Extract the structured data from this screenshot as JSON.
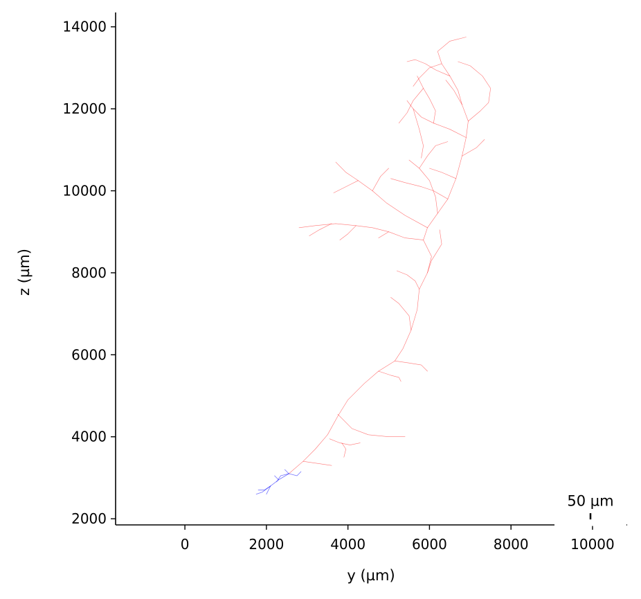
{
  "chart_data": {
    "type": "line",
    "xlabel": "y (µm)",
    "ylabel": "z (µm)",
    "xlim": [
      -1700,
      10850
    ],
    "ylim": [
      1850,
      14350
    ],
    "xticks": [
      0,
      2000,
      4000,
      6000,
      8000,
      10000
    ],
    "yticks": [
      2000,
      4000,
      6000,
      8000,
      10000,
      12000,
      14000
    ],
    "xtick_labels": [
      "0",
      "2000",
      "4000",
      "6000",
      "8000",
      "10000"
    ],
    "ytick_labels": [
      "2000",
      "4000",
      "6000",
      "8000",
      "10000",
      "12000",
      "14000"
    ],
    "grid": false,
    "scalebar": {
      "label": "50 µm",
      "x": 9950,
      "y": 2060,
      "length": 50
    },
    "colors": {
      "axon": "#ff0000",
      "dendrite": "#0000ff",
      "axes": "#000000"
    },
    "series": [
      {
        "color": "#ff0000",
        "paths": [
          [
            [
              2550,
              3100
            ],
            [
              2900,
              3400
            ],
            [
              3200,
              3700
            ],
            [
              3500,
              4050
            ],
            [
              3750,
              4500
            ],
            [
              4000,
              4900
            ],
            [
              4400,
              5300
            ],
            [
              4750,
              5600
            ],
            [
              5150,
              5850
            ],
            [
              5350,
              6150
            ],
            [
              5550,
              6600
            ],
            [
              5700,
              7100
            ],
            [
              5750,
              7600
            ],
            [
              5950,
              8000
            ],
            [
              6050,
              8400
            ],
            [
              5850,
              8800
            ],
            [
              5950,
              9100
            ],
            [
              6200,
              9450
            ],
            [
              6450,
              9800
            ],
            [
              6650,
              10300
            ],
            [
              6800,
              10850
            ],
            [
              6900,
              11300
            ],
            [
              6950,
              11700
            ],
            [
              6800,
              12100
            ],
            [
              6700,
              12450
            ],
            [
              6500,
              12800
            ],
            [
              6300,
              13100
            ],
            [
              6200,
              13400
            ],
            [
              6500,
              13650
            ],
            [
              6900,
              13750
            ]
          ],
          [
            [
              3550,
              3950
            ],
            [
              3800,
              3850
            ],
            [
              4050,
              3800
            ],
            [
              4300,
              3850
            ]
          ],
          [
            [
              3850,
              3850
            ],
            [
              3950,
              3700
            ],
            [
              3900,
              3500
            ]
          ],
          [
            [
              3750,
              4550
            ],
            [
              4100,
              4200
            ],
            [
              4500,
              4050
            ],
            [
              5000,
              4000
            ],
            [
              5400,
              4000
            ]
          ],
          [
            [
              4750,
              5600
            ],
            [
              5050,
              5500
            ],
            [
              5250,
              5450
            ],
            [
              5300,
              5350
            ]
          ],
          [
            [
              5150,
              5850
            ],
            [
              5500,
              5800
            ],
            [
              5800,
              5750
            ],
            [
              5950,
              5600
            ]
          ],
          [
            [
              5550,
              6600
            ],
            [
              5500,
              6950
            ],
            [
              5250,
              7250
            ],
            [
              5050,
              7400
            ]
          ],
          [
            [
              5750,
              7600
            ],
            [
              5650,
              7800
            ],
            [
              5450,
              7950
            ],
            [
              5200,
              8050
            ]
          ],
          [
            [
              5950,
              8000
            ],
            [
              6050,
              8300
            ],
            [
              6300,
              8700
            ],
            [
              6250,
              9050
            ]
          ],
          [
            [
              5850,
              8800
            ],
            [
              5400,
              8850
            ],
            [
              5000,
              9000
            ],
            [
              4600,
              9100
            ],
            [
              4200,
              9150
            ],
            [
              3700,
              9200
            ],
            [
              3200,
              9150
            ],
            [
              2800,
              9100
            ]
          ],
          [
            [
              4200,
              9150
            ],
            [
              4000,
              8950
            ],
            [
              3800,
              8800
            ]
          ],
          [
            [
              3600,
              9200
            ],
            [
              3300,
              9050
            ],
            [
              3050,
              8900
            ]
          ],
          [
            [
              5000,
              9000
            ],
            [
              4750,
              8850
            ]
          ],
          [
            [
              5950,
              9100
            ],
            [
              5400,
              9400
            ],
            [
              4950,
              9700
            ],
            [
              4600,
              10000
            ],
            [
              4250,
              10250
            ],
            [
              3950,
              10450
            ],
            [
              3700,
              10700
            ]
          ],
          [
            [
              4600,
              10000
            ],
            [
              4800,
              10350
            ],
            [
              5000,
              10550
            ]
          ],
          [
            [
              4250,
              10250
            ],
            [
              3950,
              10100
            ],
            [
              3650,
              9950
            ]
          ],
          [
            [
              6450,
              9800
            ],
            [
              6100,
              10000
            ],
            [
              5800,
              10100
            ],
            [
              5400,
              10200
            ],
            [
              5050,
              10300
            ]
          ],
          [
            [
              6200,
              9450
            ],
            [
              6150,
              9850
            ],
            [
              6000,
              10250
            ],
            [
              5750,
              10550
            ],
            [
              5500,
              10750
            ]
          ],
          [
            [
              5750,
              10550
            ],
            [
              5950,
              10850
            ],
            [
              6150,
              11100
            ],
            [
              6450,
              11200
            ]
          ],
          [
            [
              6650,
              10300
            ],
            [
              6300,
              10450
            ],
            [
              6000,
              10550
            ]
          ],
          [
            [
              6800,
              10850
            ],
            [
              7150,
              11050
            ],
            [
              7350,
              11250
            ]
          ],
          [
            [
              6900,
              11300
            ],
            [
              6500,
              11500
            ],
            [
              6100,
              11650
            ],
            [
              5800,
              11800
            ],
            [
              5600,
              12000
            ],
            [
              5450,
              12200
            ]
          ],
          [
            [
              6100,
              11650
            ],
            [
              6150,
              11950
            ],
            [
              6000,
              12250
            ],
            [
              5850,
              12500
            ],
            [
              5700,
              12800
            ]
          ],
          [
            [
              6950,
              11700
            ],
            [
              7250,
              11950
            ],
            [
              7450,
              12150
            ],
            [
              7500,
              12500
            ],
            [
              7300,
              12800
            ],
            [
              7000,
              13050
            ],
            [
              6700,
              13150
            ]
          ],
          [
            [
              6500,
              12800
            ],
            [
              6150,
              12950
            ],
            [
              5900,
              13100
            ],
            [
              5650,
              13200
            ],
            [
              5450,
              13150
            ]
          ],
          [
            [
              6300,
              13100
            ],
            [
              6000,
              13000
            ],
            [
              5750,
              12750
            ],
            [
              5600,
              12550
            ]
          ],
          [
            [
              5850,
              12500
            ],
            [
              5600,
              12200
            ],
            [
              5450,
              11900
            ],
            [
              5250,
              11650
            ]
          ],
          [
            [
              6800,
              12100
            ],
            [
              6600,
              12450
            ],
            [
              6400,
              12700
            ]
          ],
          [
            [
              5600,
              12000
            ],
            [
              5750,
              11500
            ],
            [
              5850,
              11100
            ],
            [
              5800,
              10800
            ]
          ],
          [
            [
              2900,
              3400
            ],
            [
              3250,
              3350
            ],
            [
              3600,
              3300
            ]
          ]
        ]
      },
      {
        "color": "#0000ff",
        "paths": [
          [
            [
              2550,
              3100
            ],
            [
              2300,
              2950
            ],
            [
              2100,
              2800
            ],
            [
              1900,
              2650
            ],
            [
              1750,
              2600
            ]
          ],
          [
            [
              2550,
              3100
            ],
            [
              2750,
              3050
            ],
            [
              2850,
              3150
            ]
          ],
          [
            [
              2550,
              3100
            ],
            [
              2350,
              3050
            ],
            [
              2250,
              2900
            ]
          ],
          [
            [
              2550,
              3100
            ],
            [
              2450,
              3200
            ]
          ],
          [
            [
              2100,
              2800
            ],
            [
              1950,
              2700
            ],
            [
              1800,
              2700
            ]
          ],
          [
            [
              2100,
              2800
            ],
            [
              2000,
              2600
            ]
          ],
          [
            [
              2300,
              2950
            ],
            [
              2200,
              3050
            ]
          ]
        ]
      }
    ]
  }
}
